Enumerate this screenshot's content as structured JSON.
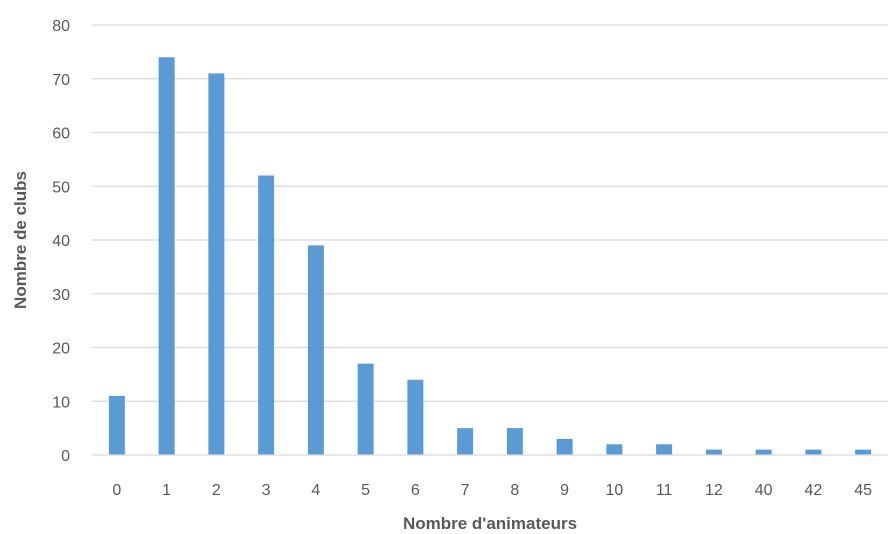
{
  "chart_data": {
    "type": "bar",
    "title": "",
    "xlabel": "Nombre d'animateurs",
    "ylabel": "Nombre de clubs",
    "categories": [
      "0",
      "1",
      "2",
      "3",
      "4",
      "5",
      "6",
      "7",
      "8",
      "9",
      "10",
      "11",
      "12",
      "40",
      "42",
      "45"
    ],
    "values": [
      11,
      74,
      71,
      52,
      39,
      17,
      14,
      5,
      5,
      3,
      2,
      2,
      1,
      1,
      1,
      1
    ],
    "ylim": [
      0,
      80
    ],
    "yticks": [
      "0",
      "10",
      "20",
      "30",
      "40",
      "50",
      "60",
      "70",
      "80"
    ],
    "grid": true,
    "legend": "none",
    "bar_color": "#5B9BD5",
    "grid_color": "#D9D9D9",
    "text_color": "#595959"
  }
}
